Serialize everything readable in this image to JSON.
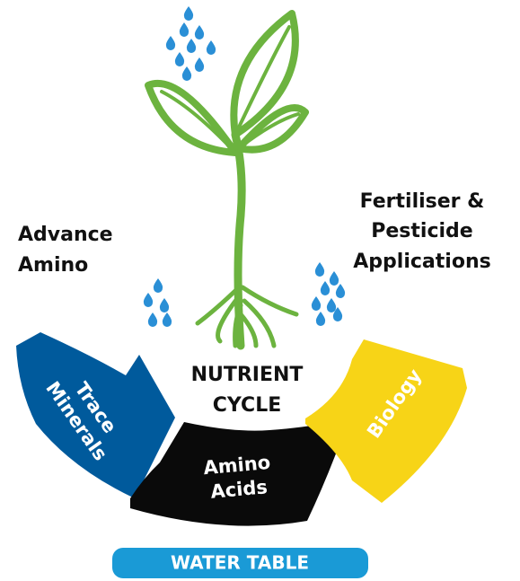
{
  "left_label": [
    "Advance",
    "Amino"
  ],
  "right_label": [
    "Fertiliser &",
    "Pesticide",
    "Applications"
  ],
  "center_label": [
    "NUTRIENT",
    "CYCLE"
  ],
  "segments": [
    {
      "label": [
        "Trace",
        "Minerals"
      ]
    },
    {
      "label": [
        "Amino",
        "Acids"
      ]
    },
    {
      "label": [
        "Biology"
      ]
    }
  ],
  "footer": "WATER TABLE"
}
